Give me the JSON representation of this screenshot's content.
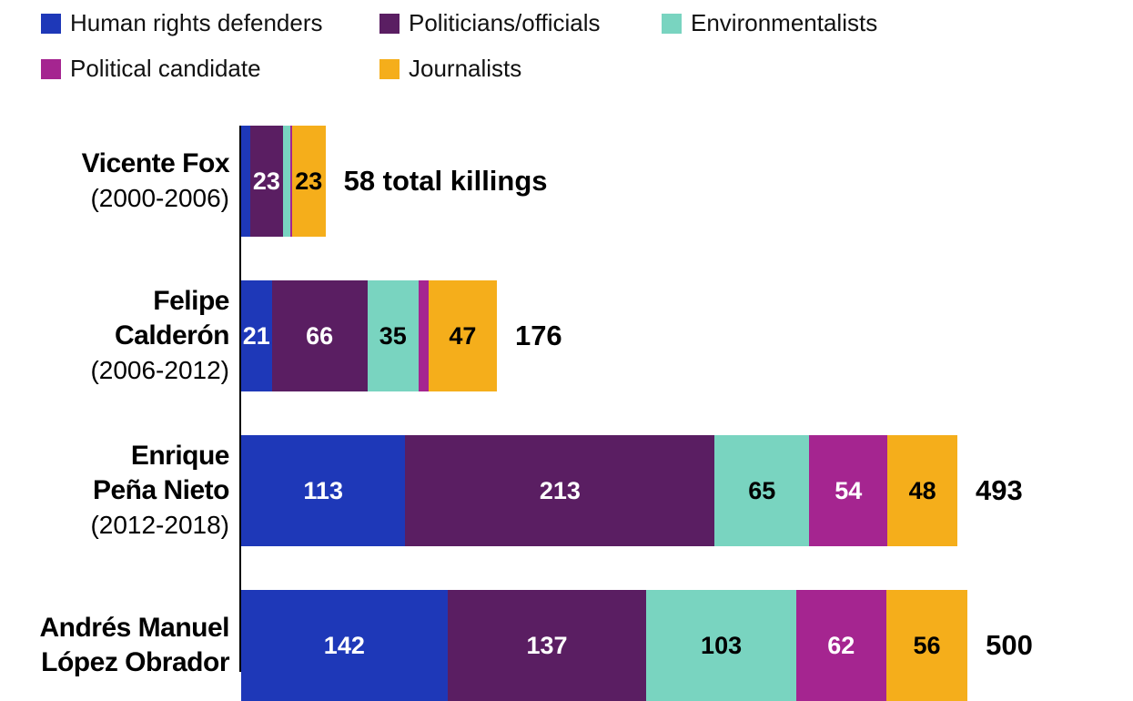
{
  "chart_data": {
    "type": "bar",
    "orientation": "horizontal",
    "stacked": true,
    "legend_position": "top",
    "series": [
      {
        "name": "Human rights defenders",
        "color": "#1e38b8",
        "label_color": "#ffffff",
        "values": [
          6,
          21,
          113,
          142
        ]
      },
      {
        "name": "Politicians/officials",
        "color": "#5a1e62",
        "label_color": "#ffffff",
        "values": [
          23,
          66,
          213,
          137
        ]
      },
      {
        "name": "Environmentalists",
        "color": "#79d4c0",
        "label_color": "#000000",
        "values": [
          5,
          35,
          65,
          103
        ]
      },
      {
        "name": "Political candidate",
        "color": "#a52590",
        "label_color": "#ffffff",
        "values": [
          1,
          7,
          54,
          62
        ]
      },
      {
        "name": "Journalists",
        "color": "#f5ae1b",
        "label_color": "#000000",
        "values": [
          23,
          47,
          48,
          56
        ]
      }
    ],
    "categories": [
      {
        "name": "Vicente Fox",
        "period": "(2000-2006)",
        "total_label": "58 total killings"
      },
      {
        "name": "Felipe Calderón",
        "period": "(2006-2012)",
        "total_label": "176"
      },
      {
        "name": "Enrique Peña Nieto",
        "period": "(2012-2018)",
        "total_label": "493"
      },
      {
        "name": "Andrés Manuel López Obrador",
        "period": "",
        "total_label": "500"
      }
    ],
    "name_lines": [
      [
        "Vicente Fox"
      ],
      [
        "Felipe",
        "Calderón"
      ],
      [
        "Enrique",
        "Peña Nieto"
      ],
      [
        "Andrés Manuel",
        "López Obrador"
      ]
    ],
    "xlim": [
      0,
      493
    ],
    "grid": false
  }
}
